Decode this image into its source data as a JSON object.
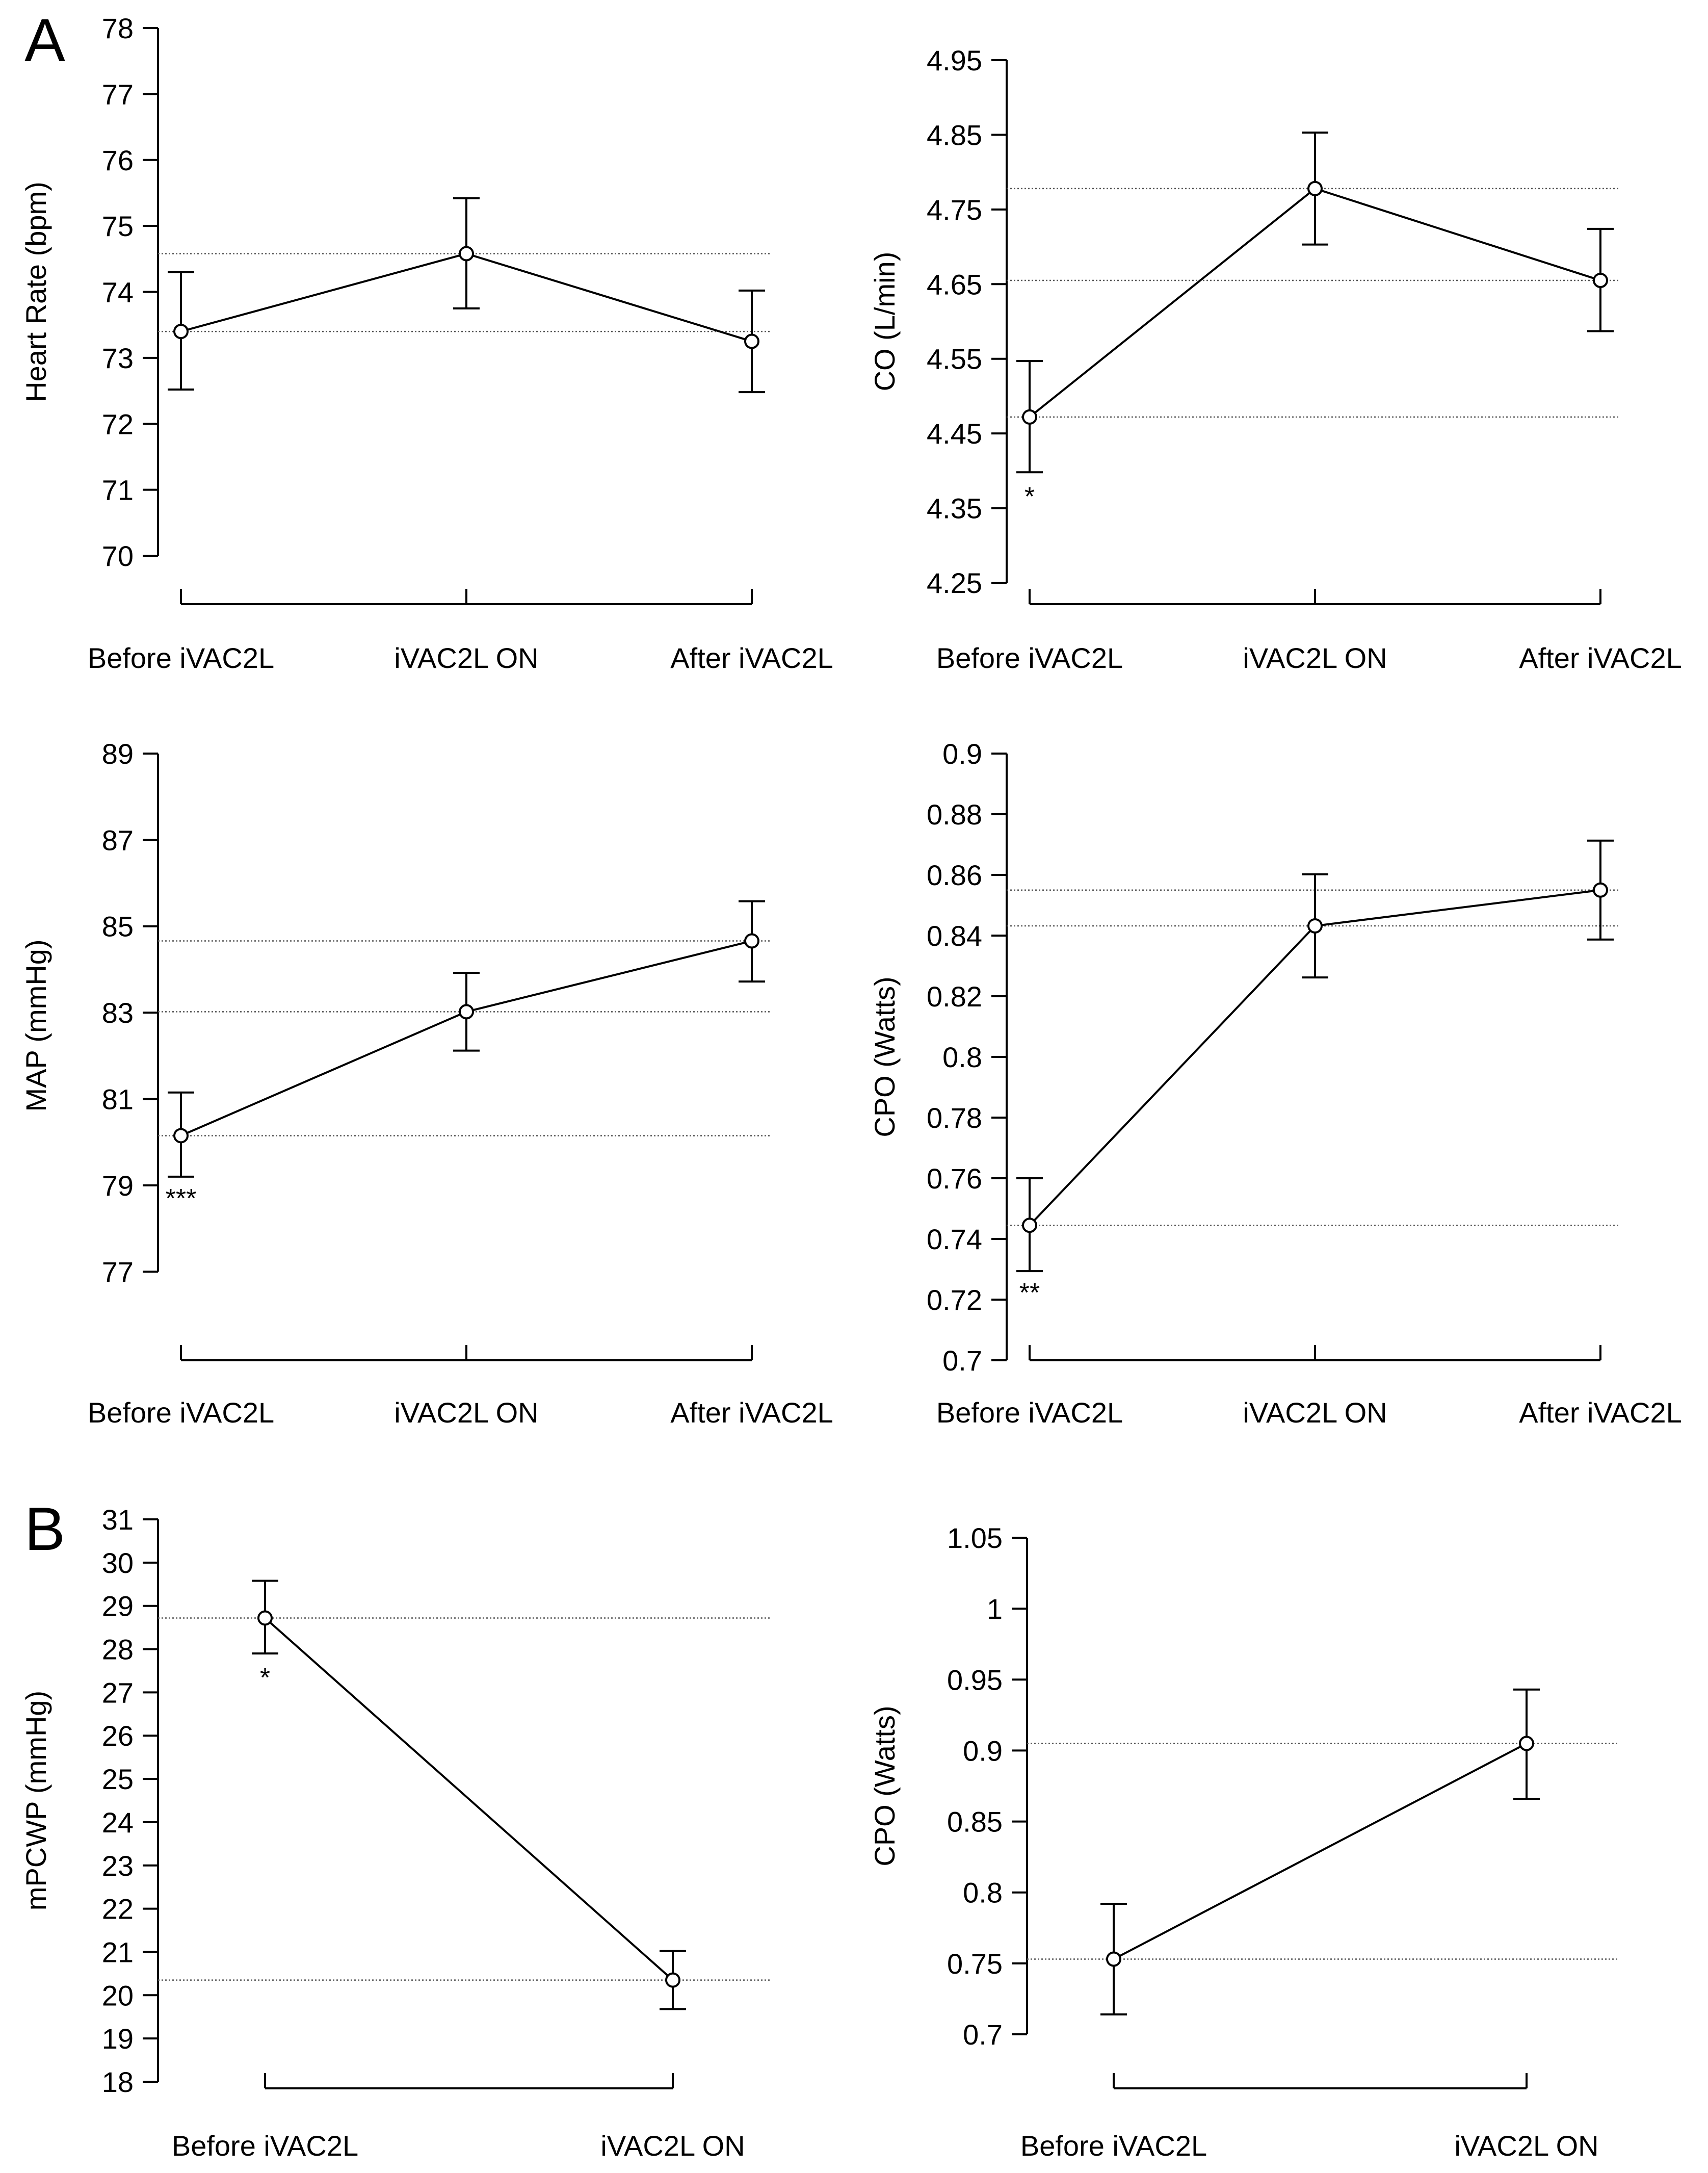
{
  "figure": {
    "panel_labels": [
      "A",
      "B"
    ]
  },
  "chart_data": [
    {
      "type": "line",
      "panel": "A",
      "ylabel": "Heart Rate (bpm)",
      "categories": [
        "Before iVAC2L",
        "iVAC2L ON",
        "After iVAC2L"
      ],
      "yticks": [
        70,
        71,
        72,
        73,
        74,
        75,
        76,
        77,
        78
      ],
      "ylim": [
        70,
        78
      ],
      "values": [
        73.4,
        74.58,
        73.25
      ],
      "err_low": [
        72.52,
        73.75,
        72.48
      ],
      "err_high": [
        74.3,
        75.42,
        74.02
      ],
      "ref_lines": [
        74.58,
        73.4
      ],
      "significance": [
        "",
        "",
        ""
      ]
    },
    {
      "type": "line",
      "panel": "A",
      "ylabel": "CO (L/min)",
      "categories": [
        "Before iVAC2L",
        "iVAC2L ON",
        "After iVAC2L"
      ],
      "yticks": [
        4.25,
        4.35,
        4.45,
        4.55,
        4.65,
        4.75,
        4.85,
        4.95
      ],
      "ylim": [
        4.25,
        4.95
      ],
      "values": [
        4.472,
        4.778,
        4.655
      ],
      "err_low": [
        4.398,
        4.703,
        4.587
      ],
      "err_high": [
        4.547,
        4.853,
        4.724
      ],
      "ref_lines": [
        4.778,
        4.655,
        4.472
      ],
      "significance": [
        "*",
        "",
        ""
      ]
    },
    {
      "type": "line",
      "panel": "A",
      "ylabel": "MAP (mmHg)",
      "categories": [
        "Before iVAC2L",
        "iVAC2L ON",
        "After iVAC2L"
      ],
      "yticks": [
        77,
        79,
        81,
        83,
        85,
        87,
        89
      ],
      "ylim": [
        76.4,
        89
      ],
      "values": [
        80.15,
        83.02,
        84.66
      ],
      "err_low": [
        79.2,
        82.12,
        83.72
      ],
      "err_high": [
        81.15,
        83.92,
        85.58
      ],
      "ref_lines": [
        84.66,
        83.02,
        80.15
      ],
      "significance": [
        "***",
        "",
        ""
      ]
    },
    {
      "type": "line",
      "panel": "A",
      "ylabel": "CPO (Watts)",
      "categories": [
        "Before iVAC2L",
        "iVAC2L ON",
        "After iVAC2L"
      ],
      "yticks": [
        0.7,
        0.72,
        0.74,
        0.76,
        0.78,
        0.8,
        0.82,
        0.84,
        0.86,
        0.88,
        0.9
      ],
      "ytick_labels": [
        "0.7",
        "0.72",
        "0.74",
        "0.76",
        "0.78",
        "0.8",
        "0.82",
        "0.84",
        "0.86",
        "0.88",
        "0.9"
      ],
      "ylim": [
        0.7,
        0.9
      ],
      "values": [
        0.7445,
        0.8432,
        0.855
      ],
      "err_low": [
        0.7294,
        0.8262,
        0.8387
      ],
      "err_high": [
        0.76,
        0.8602,
        0.8713
      ],
      "ref_lines": [
        0.855,
        0.8432,
        0.7445
      ],
      "significance": [
        "**",
        "",
        ""
      ]
    },
    {
      "type": "line",
      "panel": "B",
      "ylabel": "mPCWP (mmHg)",
      "categories": [
        "Before iVAC2L",
        "iVAC2L ON"
      ],
      "yticks": [
        18,
        19,
        20,
        21,
        22,
        23,
        24,
        25,
        26,
        27,
        28,
        29,
        30,
        31
      ],
      "ylim": [
        18,
        31
      ],
      "values": [
        28.72,
        20.35
      ],
      "err_low": [
        27.9,
        19.68
      ],
      "err_high": [
        29.58,
        21.02
      ],
      "ref_lines": [
        28.72,
        20.35
      ],
      "significance": [
        "*",
        ""
      ]
    },
    {
      "type": "line",
      "panel": "B",
      "ylabel": "CPO (Watts)",
      "categories": [
        "Before iVAC2L",
        "iVAC2L ON"
      ],
      "yticks": [
        0.7,
        0.75,
        0.8,
        0.85,
        0.9,
        0.95,
        1,
        1.05
      ],
      "ytick_labels": [
        "0.7",
        "0.75",
        "0.8",
        "0.85",
        "0.9",
        "0.95",
        "1",
        "1.05"
      ],
      "ylim": [
        0.7,
        1.05
      ],
      "values": [
        0.753,
        0.905
      ],
      "err_low": [
        0.714,
        0.866
      ],
      "err_high": [
        0.792,
        0.943
      ],
      "ref_lines": [
        0.905,
        0.753
      ],
      "significance": [
        "",
        ""
      ]
    }
  ]
}
